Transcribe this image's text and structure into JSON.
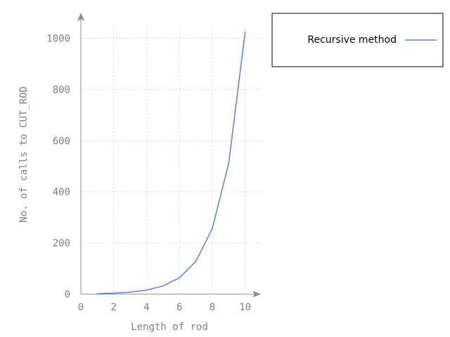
{
  "chart_data": {
    "type": "line",
    "title": "",
    "xlabel": "Length of rod",
    "ylabel": "No. of calls to CUT_ROD",
    "xlim": [
      0,
      11
    ],
    "ylim": [
      0,
      1100
    ],
    "xticks": [
      0,
      2,
      4,
      6,
      8,
      10
    ],
    "xtick_labels": [
      "0",
      "2",
      "4",
      "6",
      "8",
      "10"
    ],
    "yticks": [
      0,
      200,
      400,
      600,
      800,
      1000
    ],
    "ytick_labels": [
      "0",
      "200",
      "400",
      "600",
      "800",
      "1000"
    ],
    "grid": true,
    "legend_position": "top-right, outside plot",
    "series": [
      {
        "name": "Recursive method",
        "color": "#5b7fd6",
        "x": [
          1,
          2,
          3,
          4,
          5,
          6,
          7,
          8,
          9,
          10
        ],
        "y": [
          2,
          4,
          8,
          16,
          32,
          64,
          128,
          256,
          512,
          1024
        ]
      }
    ]
  }
}
